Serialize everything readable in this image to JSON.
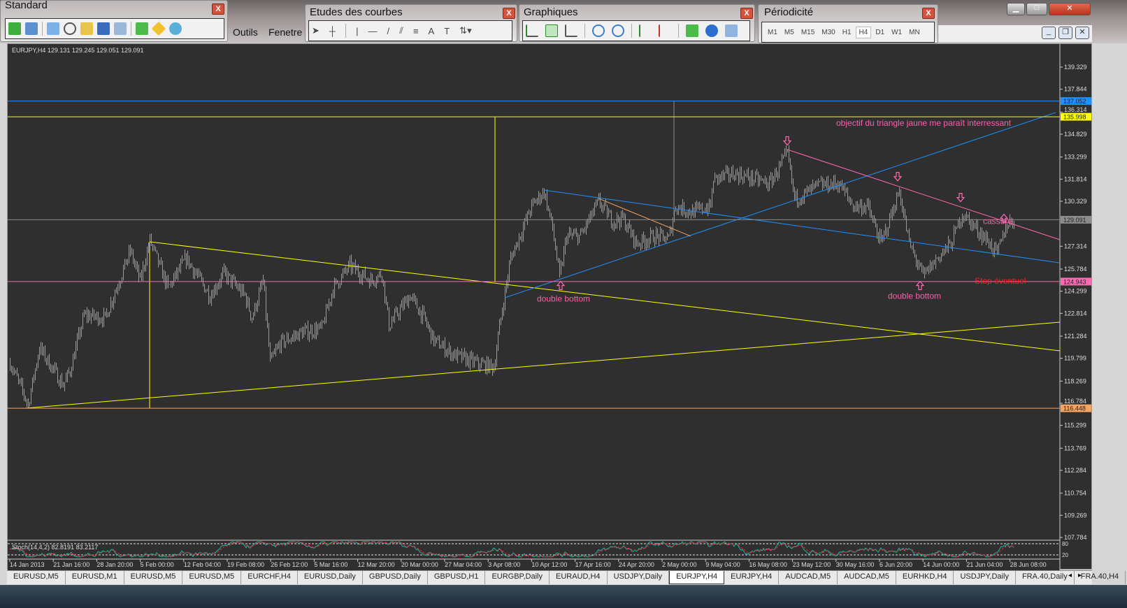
{
  "toolbars": {
    "standard": {
      "title": "Standard",
      "close": "X"
    },
    "etudes": {
      "title": "Etudes des courbes",
      "close": "X"
    },
    "graphiques": {
      "title": "Graphiques",
      "close": "X"
    },
    "periodicite": {
      "title": "Périodicité",
      "close": "X",
      "periods": [
        "M1",
        "M5",
        "M15",
        "M30",
        "H1",
        "H4",
        "D1",
        "W1",
        "MN"
      ],
      "active": "H4"
    }
  },
  "menu": {
    "outils": "Outils",
    "fenetre": "Fenetre"
  },
  "chart_header": "EURJPY,H4  129.131 129.245 129.051 129.091",
  "colors": {
    "bg": "#2f2f2f",
    "bars": "#9a9a9a",
    "yellow": "#ffff00",
    "blue": "#1e90ff",
    "pink": "#ff69b4",
    "orange": "#f4a460",
    "annotation": "#ff5fa8",
    "stop": "#ff2020"
  },
  "chart_data": {
    "type": "bar",
    "symbol": "EURJPY",
    "timeframe": "H4",
    "ylim": [
      107.784,
      139.329
    ],
    "bar_count": 720,
    "y_ticks": [
      "139.329",
      "137.844",
      "136.314",
      "134.829",
      "133.299",
      "131.814",
      "130.329",
      "127.314",
      "125.784",
      "124.299",
      "122.814",
      "121.284",
      "119.799",
      "118.269",
      "116.784",
      "115.299",
      "113.769",
      "112.284",
      "110.754",
      "109.269",
      "107.784"
    ],
    "x_ticks": [
      "14 Jan 2013",
      "21 Jan 16:00",
      "28 Jan 20:00",
      "5 Feb 00:00",
      "12 Feb 04:00",
      "19 Feb 08:00",
      "26 Feb 12:00",
      "5 Mar 16:00",
      "12 Mar 20:00",
      "20 Mar 00:00",
      "27 Mar 04:00",
      "3 Apr 08:00",
      "10 Apr 12:00",
      "17 Apr 16:00",
      "24 Apr 20:00",
      "2 May 00:00",
      "9 May 04:00",
      "16 May 08:00",
      "23 May 12:00",
      "30 May 16:00",
      "6 Jun 20:00",
      "14 Jun 00:00",
      "21 Jun 04:00",
      "28 Jun 08:00"
    ],
    "price_path": [
      [
        0,
        119.5
      ],
      [
        13,
        116.7
      ],
      [
        21,
        120.5
      ],
      [
        38,
        118
      ],
      [
        43,
        119
      ],
      [
        53,
        122.7
      ],
      [
        68,
        122.5
      ],
      [
        76,
        124.5
      ],
      [
        86,
        127
      ],
      [
        93,
        125
      ],
      [
        100,
        127.7
      ],
      [
        113,
        124.5
      ],
      [
        126,
        126.5
      ],
      [
        143,
        124
      ],
      [
        153,
        125.5
      ],
      [
        168,
        124
      ],
      [
        173,
        122.5
      ],
      [
        181,
        125
      ],
      [
        186,
        119.5
      ],
      [
        193,
        120.8
      ],
      [
        208,
        121.5
      ],
      [
        223,
        121.8
      ],
      [
        231,
        124.5
      ],
      [
        243,
        126
      ],
      [
        258,
        125
      ],
      [
        266,
        125.5
      ],
      [
        271,
        122
      ],
      [
        286,
        124
      ],
      [
        296,
        122.5
      ],
      [
        303,
        121
      ],
      [
        318,
        120
      ],
      [
        333,
        119.5
      ],
      [
        346,
        119.2
      ],
      [
        351,
        122.5
      ],
      [
        358,
        126.5
      ],
      [
        373,
        130
      ],
      [
        382,
        131
      ],
      [
        388,
        128.5
      ],
      [
        393,
        125.2
      ],
      [
        398,
        128
      ],
      [
        408,
        128
      ],
      [
        421,
        130.3
      ],
      [
        431,
        129
      ],
      [
        438,
        129.2
      ],
      [
        448,
        127.5
      ],
      [
        461,
        128
      ],
      [
        471,
        127.8
      ],
      [
        476,
        130
      ],
      [
        488,
        129.6
      ],
      [
        501,
        130
      ],
      [
        503,
        131.8
      ],
      [
        518,
        132.2
      ],
      [
        533,
        131.8
      ],
      [
        543,
        131.5
      ],
      [
        556,
        133.5
      ],
      [
        561,
        130.5
      ],
      [
        568,
        130.8
      ],
      [
        578,
        131.4
      ],
      [
        593,
        131.5
      ],
      [
        603,
        130
      ],
      [
        613,
        130
      ],
      [
        623,
        127.5
      ],
      [
        636,
        131
      ],
      [
        643,
        127.5
      ],
      [
        653,
        125.3
      ],
      [
        663,
        126.5
      ],
      [
        673,
        127.5
      ],
      [
        681,
        129.5
      ],
      [
        691,
        128.5
      ],
      [
        698,
        127.8
      ],
      [
        706,
        126.8
      ],
      [
        713,
        128.8
      ],
      [
        718,
        129.1
      ]
    ],
    "hlines": [
      {
        "price": 137.052,
        "label": "137.052",
        "color": "#1e90ff"
      },
      {
        "price": 135.998,
        "label": "135.998",
        "color": "#ffff00"
      },
      {
        "price": 129.091,
        "label": "129.091",
        "color": "#8c8c8c"
      },
      {
        "price": 124.943,
        "label": "124.943",
        "color": "#ff69b4"
      },
      {
        "price": 116.448,
        "label": "116.448",
        "color": "#f4a460"
      }
    ],
    "vlines": [
      {
        "bar": 100,
        "from": 116.448,
        "to": 127.6,
        "color": "#ffff00"
      },
      {
        "bar": 347,
        "from": 124.9,
        "to": 135.998,
        "color": "#ffff00"
      },
      {
        "bar": 475,
        "from": 129.3,
        "to": 137.052,
        "color": "#8c8c8c"
      }
    ],
    "trendlines": [
      {
        "b1": 100,
        "p1": 127.61,
        "b2": 751,
        "p2": 120.3,
        "color": "#ffff00"
      },
      {
        "b1": 11,
        "p1": 116.45,
        "b2": 751,
        "p2": 122.22,
        "color": "#ffff00"
      },
      {
        "b1": 382,
        "p1": 131.08,
        "b2": 751,
        "p2": 126.2,
        "color": "#1e90ff"
      },
      {
        "b1": 354,
        "p1": 123.86,
        "b2": 748,
        "p2": 136.28,
        "color": "#1e90ff"
      },
      {
        "b1": 556,
        "p1": 133.8,
        "b2": 751,
        "p2": 127.75,
        "color": "#ff69b4"
      },
      {
        "b1": 421,
        "p1": 130.52,
        "b2": 487,
        "p2": 127.99,
        "color": "#f4a460"
      }
    ],
    "annotations": [
      {
        "text": "objectif du triangle jaune me paraît interressant",
        "bar": 591,
        "price": 135.4,
        "color": "#ff5fa8"
      },
      {
        "text": "cassure",
        "bar": 696,
        "price": 128.8,
        "color": "#ff5fa8"
      },
      {
        "text": "Stop éventuel",
        "bar": 690,
        "price": 124.8,
        "color": "#ff2020"
      },
      {
        "text": "double bottom",
        "bar": 377,
        "price": 123.6,
        "color": "#ff5fa8"
      },
      {
        "text": "double bottom",
        "bar": 628,
        "price": 123.8,
        "color": "#ff5fa8"
      }
    ],
    "arrows": [
      {
        "dir": "down",
        "bar": 556,
        "price": 134.1
      },
      {
        "dir": "down",
        "bar": 635,
        "price": 131.7
      },
      {
        "dir": "down",
        "bar": 680,
        "price": 130.3
      },
      {
        "dir": "up",
        "bar": 394,
        "price": 124.4
      },
      {
        "dir": "up",
        "bar": 651,
        "price": 124.4
      },
      {
        "dir": "up",
        "bar": 711,
        "price": 128.9
      }
    ],
    "stochastic": {
      "label": "Stoch(14,4,2) 82.8191 83.2117",
      "levels": [
        "80",
        "20"
      ]
    }
  },
  "tabs": [
    "EURUSD,M5",
    "EURUSD,M1",
    "EURUSD,M5",
    "EURUSD,M5",
    "EURCHF,H4",
    "EURUSD,Daily",
    "GBPUSD,Daily",
    "GBPUSD,H1",
    "EURGBP,Daily",
    "EURAUD,H4",
    "USDJPY,Daily",
    "EURJPY,H4",
    "EURJPY,H4",
    "AUDCAD,M5",
    "AUDCAD,M5",
    "EURHKD,H4",
    "USDJPY,Daily",
    "FRA.40,Daily",
    "FRA.40,H4"
  ],
  "active_tab": 11
}
